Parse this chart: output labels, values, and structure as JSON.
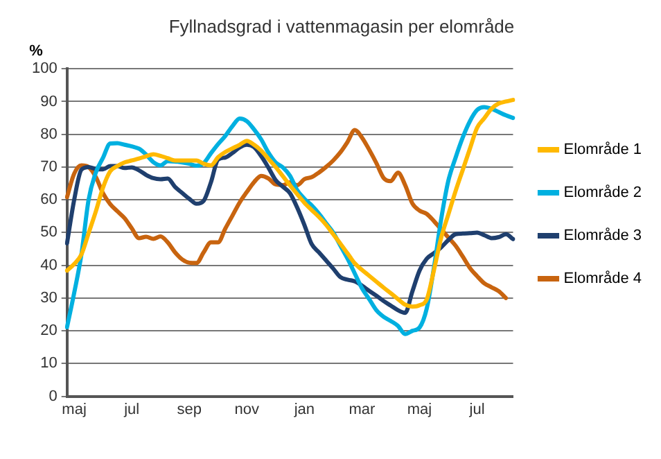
{
  "chart_data": {
    "type": "line",
    "title": "Fyllnadsgrad i vattenmagasin per elområde",
    "ylabel": "%",
    "categories": [
      null,
      "maj",
      null,
      null,
      null,
      null,
      null,
      null,
      null,
      "jul",
      null,
      null,
      null,
      null,
      null,
      null,
      null,
      "sep",
      null,
      null,
      null,
      null,
      null,
      null,
      null,
      "nov",
      null,
      null,
      null,
      null,
      null,
      null,
      null,
      "jan",
      null,
      null,
      null,
      null,
      null,
      null,
      null,
      "mar",
      null,
      null,
      null,
      null,
      null,
      null,
      null,
      "maj",
      null,
      null,
      null,
      null,
      null,
      null,
      null,
      "jul",
      null,
      null,
      null,
      null,
      null
    ],
    "ylim": [
      0,
      100
    ],
    "yticks": [
      0,
      10,
      20,
      30,
      40,
      50,
      60,
      70,
      80,
      90,
      100
    ],
    "grid": "y",
    "legend": "right",
    "marker": "none",
    "line_style": "solid",
    "series": [
      {
        "name": "Elområde 1",
        "color": "#ffb900",
        "values": [
          38.4,
          40.4,
          43.3,
          49.8,
          56.4,
          63.7,
          68.7,
          70.3,
          71.4,
          72,
          72.6,
          73.3,
          73.9,
          73.4,
          72.7,
          72,
          72,
          72,
          72,
          71,
          70.5,
          73,
          74.6,
          75.7,
          76.8,
          78,
          76.8,
          75,
          72.5,
          70,
          67.2,
          64.4,
          61.7,
          59.1,
          56.9,
          54.8,
          52.4,
          49.5,
          46.6,
          43.6,
          40.6,
          38.6,
          36.8,
          35,
          33.2,
          31.5,
          29.7,
          28,
          27.4,
          27.8,
          29.6,
          38.5,
          48.4,
          55.5,
          62.6,
          69.1,
          75.6,
          82,
          84.9,
          87.8,
          89.4,
          90,
          90.5
        ]
      },
      {
        "name": "Elområde 2",
        "color": "#00b0e0",
        "values": [
          21.1,
          31.6,
          43.3,
          60,
          68.3,
          72.8,
          77.2,
          77.3,
          76.8,
          76.3,
          75.6,
          73.8,
          71.5,
          70.5,
          71.8,
          71.7,
          71.4,
          71,
          70.4,
          71.2,
          74.2,
          77,
          79.5,
          82.5,
          84.8,
          84,
          81.5,
          78.4,
          74.4,
          71.4,
          69.9,
          67.3,
          62.9,
          60.3,
          58.3,
          55.8,
          52.9,
          50,
          46,
          42,
          37.5,
          33,
          29.7,
          26.3,
          24.3,
          23,
          21.5,
          19,
          20,
          21,
          26.8,
          39.3,
          54,
          65.8,
          72.8,
          79,
          84,
          87.4,
          88.3,
          87.8,
          86.8,
          85.8,
          85
        ]
      },
      {
        "name": "Elområde 3",
        "color": "#1f3f6e",
        "values": [
          46.7,
          60,
          69.2,
          70,
          69.4,
          69.3,
          70.3,
          70.3,
          69.7,
          69.9,
          69,
          67.6,
          66.6,
          66.3,
          66.5,
          64,
          62.1,
          60.3,
          58.8,
          59.7,
          65.3,
          72.3,
          72.9,
          74.3,
          76,
          76.8,
          76.1,
          73.3,
          69.8,
          66,
          64,
          62,
          57.6,
          52.3,
          46.5,
          44,
          41.5,
          39,
          36.4,
          35.6,
          35.1,
          33.8,
          32.2,
          30.7,
          29.1,
          27.7,
          26.3,
          25.5,
          32,
          38.4,
          42,
          43.7,
          45.5,
          47.7,
          49.5,
          49.7,
          49.8,
          50,
          49.2,
          48.3,
          48.6,
          49.5,
          48
        ]
      },
      {
        "name": "Elområde 4",
        "color": "#c8640f",
        "values": [
          60.8,
          68,
          70.5,
          70,
          67,
          62,
          58.7,
          56.5,
          54.4,
          51.3,
          48.3,
          48.7,
          48.1,
          48.8,
          47,
          44,
          41.8,
          40.8,
          40.7,
          44,
          47,
          47,
          51.2,
          55.2,
          59.2,
          62.4,
          65.4,
          67.3,
          66.5,
          64.7,
          64.5,
          65.3,
          64.5,
          66.3,
          66.9,
          68.3,
          70,
          72,
          74.5,
          77.7,
          81.3,
          79,
          75.3,
          71.2,
          66.7,
          65.7,
          68.3,
          64.5,
          58.9,
          56.7,
          55.7,
          53.5,
          51,
          48.5,
          46,
          42.7,
          39.2,
          36.7,
          34.5,
          33.3,
          32.1,
          30,
          null
        ]
      }
    ]
  }
}
